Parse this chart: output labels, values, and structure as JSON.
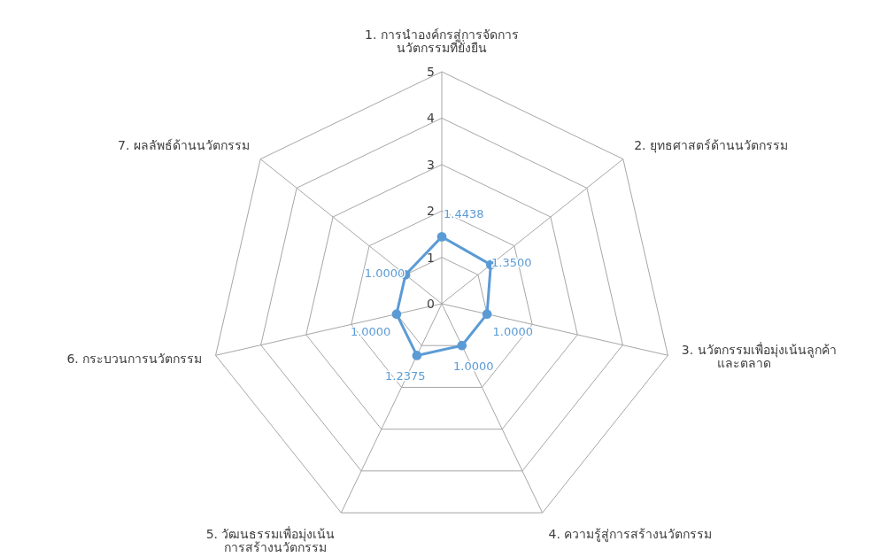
{
  "chart_data": {
    "type": "radar",
    "categories": [
      "1. การนำองค์กรสู่การจัดการ\nนวัตกรรมที่ยั่งยืน",
      "2. ยุทธศาสตร์ด้านนวัตกรรม",
      "3. นวัตกรรมเพื่อมุ่งเน้นลูกค้า\nและตลาด",
      "4. ความรู้สู่การสร้างนวัตกรรม",
      "5. วัฒนธรรมเพื่อมุ่งเน้น\nการสร้างนวัตกรรม",
      "6. กระบวนการนวัตกรรม",
      "7. ผลลัพธ์ด้านนวัตกรรม"
    ],
    "series": [
      {
        "color": "#5b9bd5",
        "values": [
          1.4438,
          1.35,
          1.0,
          1.0,
          1.2375,
          1.0,
          1.0
        ],
        "value_labels": [
          "1.4438",
          "1.3500",
          "1.0000",
          "1.0000",
          "1.2375",
          "1.0000",
          "1.0000"
        ]
      }
    ],
    "ylim": [
      0,
      5
    ],
    "yticks": [
      0,
      1,
      2,
      3,
      4,
      5
    ],
    "grid": true,
    "marker": "circle"
  }
}
